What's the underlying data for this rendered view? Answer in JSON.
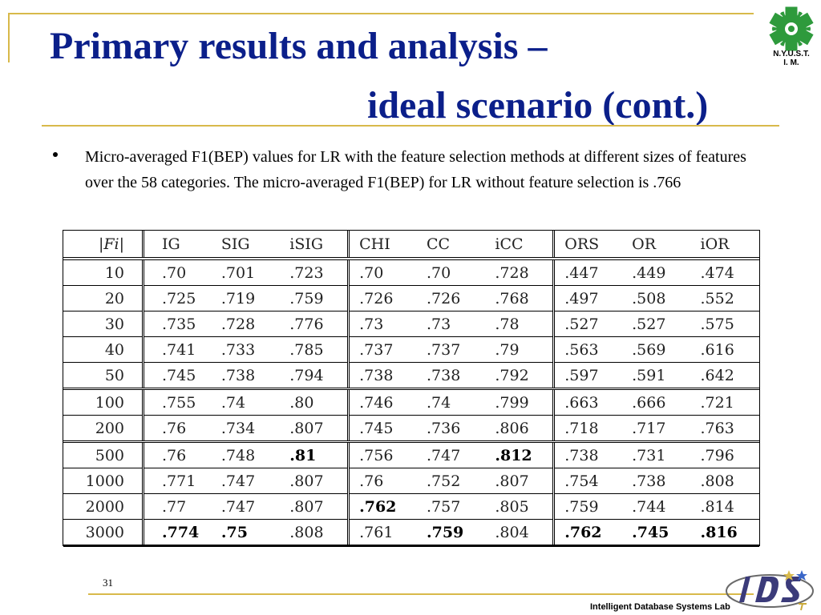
{
  "slide": {
    "title_line1": "Primary results and analysis  –",
    "title_line2": "ideal scenario (cont.)",
    "logo_text_line1": "N.Y.U.S.T.",
    "logo_text_line2": "I. M.",
    "bullet": "Micro-averaged F1(BEP) values for LR with the feature selection methods at different sizes of features over the 58 categories. The micro-averaged F1(BEP) for LR without feature selection is .766",
    "page_number": "31",
    "footer": "Intelligent Database Systems Lab",
    "colors": {
      "title": "#0b1f8a",
      "rule": "#d8b94a",
      "logo_green": "#2e9a3c"
    }
  },
  "table": {
    "headers": [
      "|Fi|",
      "IG",
      "SIG",
      "iSIG",
      "CHI",
      "CC",
      "iCC",
      "ORS",
      "OR",
      "iOR"
    ],
    "rows": [
      {
        "cells": [
          "10",
          ".70",
          ".701",
          ".723",
          ".70",
          ".70",
          ".728",
          ".447",
          ".449",
          ".474"
        ],
        "bold": []
      },
      {
        "cells": [
          "20",
          ".725",
          ".719",
          ".759",
          ".726",
          ".726",
          ".768",
          ".497",
          ".508",
          ".552"
        ],
        "bold": []
      },
      {
        "cells": [
          "30",
          ".735",
          ".728",
          ".776",
          ".73",
          ".73",
          ".78",
          ".527",
          ".527",
          ".575"
        ],
        "bold": []
      },
      {
        "cells": [
          "40",
          ".741",
          ".733",
          ".785",
          ".737",
          ".737",
          ".79",
          ".563",
          ".569",
          ".616"
        ],
        "bold": []
      },
      {
        "cells": [
          "50",
          ".745",
          ".738",
          ".794",
          ".738",
          ".738",
          ".792",
          ".597",
          ".591",
          ".642"
        ],
        "bold": []
      },
      {
        "cells": [
          "100",
          ".755",
          ".74",
          ".80",
          ".746",
          ".74",
          ".799",
          ".663",
          ".666",
          ".721"
        ],
        "bold": []
      },
      {
        "cells": [
          "200",
          ".76",
          ".734",
          ".807",
          ".745",
          ".736",
          ".806",
          ".718",
          ".717",
          ".763"
        ],
        "bold": []
      },
      {
        "cells": [
          "500",
          ".76",
          ".748",
          ".81",
          ".756",
          ".747",
          ".812",
          ".738",
          ".731",
          ".796"
        ],
        "bold": [
          3,
          6
        ]
      },
      {
        "cells": [
          "1000",
          ".771",
          ".747",
          ".807",
          ".76",
          ".752",
          ".807",
          ".754",
          ".738",
          ".808"
        ],
        "bold": []
      },
      {
        "cells": [
          "2000",
          ".77",
          ".747",
          ".807",
          ".762",
          ".757",
          ".805",
          ".759",
          ".744",
          ".814"
        ],
        "bold": [
          4
        ]
      },
      {
        "cells": [
          "3000",
          ".774",
          ".75",
          ".808",
          ".761",
          ".759",
          ".804",
          ".762",
          ".745",
          ".816"
        ],
        "bold": [
          1,
          2,
          5,
          7,
          8,
          9
        ]
      }
    ]
  }
}
